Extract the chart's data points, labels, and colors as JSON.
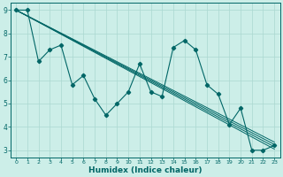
{
  "xlabel": "Humidex (Indice chaleur)",
  "bg_color": "#cceee8",
  "grid_color": "#aad8d0",
  "line_color": "#006666",
  "xlim": [
    -0.5,
    23.5
  ],
  "ylim": [
    2.7,
    9.3
  ],
  "yticks": [
    3,
    4,
    5,
    6,
    7,
    8,
    9
  ],
  "xticks": [
    0,
    1,
    2,
    3,
    4,
    5,
    6,
    7,
    8,
    9,
    10,
    11,
    12,
    13,
    14,
    15,
    16,
    17,
    18,
    19,
    20,
    21,
    22,
    23
  ],
  "main_series": [
    [
      0,
      9
    ],
    [
      1,
      9
    ],
    [
      2,
      6.8
    ],
    [
      3,
      7.3
    ],
    [
      4,
      7.5
    ],
    [
      5,
      5.8
    ],
    [
      6,
      6.2
    ],
    [
      7,
      5.2
    ],
    [
      8,
      4.5
    ],
    [
      9,
      5.0
    ],
    [
      10,
      5.5
    ],
    [
      11,
      6.7
    ],
    [
      12,
      5.5
    ],
    [
      13,
      5.3
    ],
    [
      14,
      7.4
    ],
    [
      15,
      7.7
    ],
    [
      16,
      7.3
    ],
    [
      17,
      5.8
    ],
    [
      18,
      5.4
    ],
    [
      19,
      4.1
    ],
    [
      20,
      4.8
    ],
    [
      21,
      3.0
    ],
    [
      22,
      3.0
    ],
    [
      23,
      3.2
    ]
  ],
  "trend_lines": [
    [
      [
        0,
        9
      ],
      [
        23,
        3.1
      ]
    ],
    [
      [
        0,
        9
      ],
      [
        23,
        3.2
      ]
    ],
    [
      [
        0,
        9
      ],
      [
        23,
        3.3
      ]
    ],
    [
      [
        0,
        9
      ],
      [
        23,
        3.15
      ]
    ]
  ]
}
